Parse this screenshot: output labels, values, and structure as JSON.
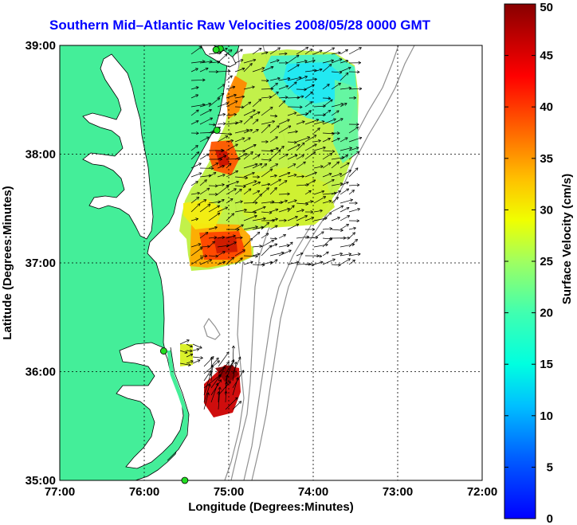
{
  "title": "Southern Mid–Atlantic Raw Velocities 2008/05/28 0000 GMT",
  "x_axis": {
    "label": "Longitude (Degrees:Minutes)",
    "ticks": [
      "77:00",
      "76:00",
      "75:00",
      "74:00",
      "73:00",
      "72:00"
    ],
    "range": [
      -77,
      -72
    ]
  },
  "y_axis": {
    "label": "Latitude (Degrees:Minutes)",
    "ticks": [
      "39:00",
      "38:00",
      "37:00",
      "36:00",
      "35:00"
    ],
    "range": [
      35,
      39
    ]
  },
  "colorbar": {
    "label": "Surface Velocity (cm/s)",
    "ticks": [
      "50",
      "45",
      "40",
      "35",
      "30",
      "25",
      "20",
      "15",
      "10",
      "5",
      "0"
    ],
    "range": [
      0,
      50
    ],
    "colormap": "jet"
  },
  "colors": {
    "land": "#44ee99",
    "ocean": "#ffffff",
    "title": "#0000ff",
    "grid": "#000000",
    "bathymetry": "#909090",
    "station": "#22dd22"
  },
  "stations": [
    {
      "lon": -75.1,
      "lat": 38.97
    },
    {
      "lon": -75.15,
      "lat": 38.96
    },
    {
      "lon": -75.14,
      "lat": 38.22
    },
    {
      "lon": -75.77,
      "lat": 36.19
    },
    {
      "lon": -75.52,
      "lat": 35.0
    }
  ]
}
